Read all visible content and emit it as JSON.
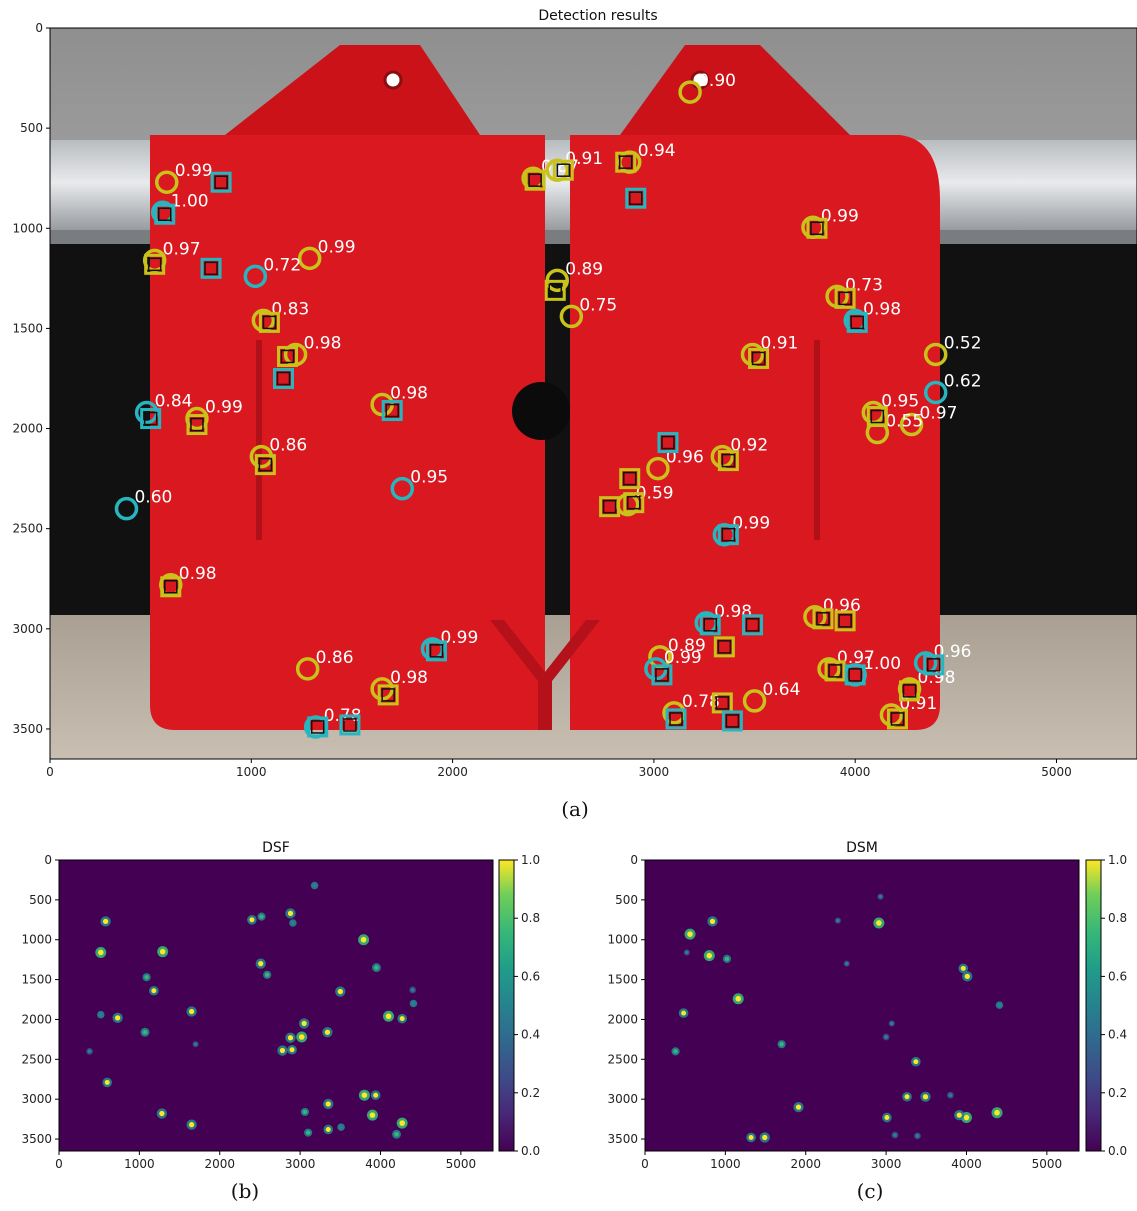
{
  "figure_labels": {
    "a": "(a)",
    "b": "(b)",
    "c": "(c)"
  },
  "colors": {
    "yellow_marker": "#c9c21a",
    "cyan_marker": "#27b6c0",
    "target_red": "#d91820",
    "colormap_low": "#440154",
    "colormap_high": "#fde725"
  },
  "chart_data": [
    {
      "type": "scatter",
      "title": "Detection results",
      "xlabel": "",
      "ylabel": "",
      "xlim": [
        0,
        5400
      ],
      "ylim": [
        3650,
        0
      ],
      "x_ticks": [
        0,
        1000,
        2000,
        3000,
        4000,
        5000
      ],
      "y_ticks": [
        0,
        500,
        1000,
        1500,
        2000,
        2500,
        3000,
        3500
      ],
      "grid": false,
      "series": [
        {
          "marker": "circle",
          "color": "yellow",
          "points": [
            {
              "x": 3180,
              "y": 320,
              "label": "0.90"
            },
            {
              "x": 580,
              "y": 770,
              "label": "0.99"
            },
            {
              "x": 520,
              "y": 1160,
              "label": "0.97"
            },
            {
              "x": 1290,
              "y": 1150,
              "label": "0.99"
            },
            {
              "x": 2590,
              "y": 1440,
              "label": "0.75"
            },
            {
              "x": 3790,
              "y": 995,
              "label": "0.99"
            },
            {
              "x": 3910,
              "y": 1340,
              "label": "0.73"
            },
            {
              "x": 3490,
              "y": 1630,
              "label": "0.91"
            },
            {
              "x": 4400,
              "y": 1630,
              "label": "0.52"
            },
            {
              "x": 4090,
              "y": 1920,
              "label": "0.95"
            },
            {
              "x": 4280,
              "y": 1980,
              "label": "0.97"
            },
            {
              "x": 730,
              "y": 1950,
              "label": "0.99"
            },
            {
              "x": 1650,
              "y": 1880,
              "label": "0.98"
            },
            {
              "x": 1050,
              "y": 2140,
              "label": "0.86"
            },
            {
              "x": 3340,
              "y": 2140,
              "label": "0.92"
            },
            {
              "x": 3020,
              "y": 2200,
              "label": "0.96"
            },
            {
              "x": 600,
              "y": 2780,
              "label": "0.98"
            },
            {
              "x": 1280,
              "y": 3200,
              "label": "0.86"
            },
            {
              "x": 1650,
              "y": 3300,
              "label": "0.98"
            },
            {
              "x": 3030,
              "y": 3140,
              "label": "0.89"
            },
            {
              "x": 3800,
              "y": 2940,
              "label": "0.96"
            },
            {
              "x": 3870,
              "y": 3200,
              "label": "0.97"
            },
            {
              "x": 3100,
              "y": 3420,
              "label": "0.78"
            },
            {
              "x": 3500,
              "y": 3360,
              "label": "0.64"
            },
            {
              "x": 4270,
              "y": 3300,
              "label": "0.98"
            },
            {
              "x": 4180,
              "y": 3430,
              "label": "0.91"
            },
            {
              "x": 2880,
              "y": 670,
              "label": "0.94"
            },
            {
              "x": 2400,
              "y": 750,
              "label": "0.87"
            },
            {
              "x": 2520,
              "y": 710,
              "label": "0.91"
            },
            {
              "x": 2520,
              "y": 1260,
              "label": "0.89"
            },
            {
              "x": 1220,
              "y": 1630,
              "label": "0.98"
            },
            {
              "x": 2870,
              "y": 2380,
              "label": "0.59"
            },
            {
              "x": 4110,
              "y": 2020,
              "label": "0.55"
            },
            {
              "x": 1060,
              "y": 1460,
              "label": "0.83"
            }
          ]
        },
        {
          "marker": "circle",
          "color": "cyan",
          "points": [
            {
              "x": 560,
              "y": 920,
              "label": "1.00"
            },
            {
              "x": 1020,
              "y": 1240,
              "label": "0.72"
            },
            {
              "x": 480,
              "y": 1920,
              "label": "0.84"
            },
            {
              "x": 380,
              "y": 2400,
              "label": "0.60"
            },
            {
              "x": 1750,
              "y": 2300,
              "label": "0.95"
            },
            {
              "x": 1900,
              "y": 3100,
              "label": "0.99"
            },
            {
              "x": 1320,
              "y": 3490,
              "label": "0.78"
            },
            {
              "x": 3010,
              "y": 3200,
              "label": "0.99"
            },
            {
              "x": 3260,
              "y": 2970,
              "label": "0.98"
            },
            {
              "x": 4000,
              "y": 3230,
              "label": "1.00"
            },
            {
              "x": 4350,
              "y": 3170,
              "label": "0.96"
            },
            {
              "x": 4400,
              "y": 1820,
              "label": "0.62"
            },
            {
              "x": 4000,
              "y": 1460,
              "label": "0.98"
            },
            {
              "x": 3350,
              "y": 2530,
              "label": "0.99"
            }
          ]
        },
        {
          "marker": "square",
          "color": "yellow",
          "points": [
            {
              "x": 2410,
              "y": 760
            },
            {
              "x": 2550,
              "y": 710
            },
            {
              "x": 2860,
              "y": 670
            },
            {
              "x": 2510,
              "y": 1310
            },
            {
              "x": 520,
              "y": 1180
            },
            {
              "x": 1090,
              "y": 1470
            },
            {
              "x": 1180,
              "y": 1640
            },
            {
              "x": 730,
              "y": 1980
            },
            {
              "x": 1070,
              "y": 2180
            },
            {
              "x": 3810,
              "y": 1000
            },
            {
              "x": 3950,
              "y": 1350
            },
            {
              "x": 3520,
              "y": 1650
            },
            {
              "x": 4110,
              "y": 1940
            },
            {
              "x": 3370,
              "y": 2160
            },
            {
              "x": 2880,
              "y": 2250
            },
            {
              "x": 2780,
              "y": 2390
            },
            {
              "x": 2900,
              "y": 2370
            },
            {
              "x": 600,
              "y": 2790
            },
            {
              "x": 1680,
              "y": 3330
            },
            {
              "x": 3350,
              "y": 3090
            },
            {
              "x": 3840,
              "y": 2950
            },
            {
              "x": 3950,
              "y": 2960
            },
            {
              "x": 3900,
              "y": 3210
            },
            {
              "x": 3340,
              "y": 3370
            },
            {
              "x": 4270,
              "y": 3310
            },
            {
              "x": 4210,
              "y": 3450
            }
          ]
        },
        {
          "marker": "square",
          "color": "cyan",
          "points": [
            {
              "x": 850,
              "y": 770
            },
            {
              "x": 570,
              "y": 930
            },
            {
              "x": 800,
              "y": 1200
            },
            {
              "x": 1160,
              "y": 1750
            },
            {
              "x": 500,
              "y": 1950
            },
            {
              "x": 1700,
              "y": 1910
            },
            {
              "x": 2910,
              "y": 850
            },
            {
              "x": 3070,
              "y": 2070
            },
            {
              "x": 3370,
              "y": 2530
            },
            {
              "x": 3490,
              "y": 2980
            },
            {
              "x": 3280,
              "y": 2980
            },
            {
              "x": 3040,
              "y": 3230
            },
            {
              "x": 1920,
              "y": 3110
            },
            {
              "x": 1490,
              "y": 3480
            },
            {
              "x": 1330,
              "y": 3490
            },
            {
              "x": 3110,
              "y": 3450
            },
            {
              "x": 3390,
              "y": 3460
            },
            {
              "x": 4010,
              "y": 1470
            },
            {
              "x": 4000,
              "y": 3230
            },
            {
              "x": 4390,
              "y": 3180
            }
          ]
        }
      ]
    },
    {
      "type": "heatmap",
      "title": "DSF",
      "xlim": [
        0,
        5400
      ],
      "ylim": [
        3650,
        0
      ],
      "x_ticks": [
        0,
        1000,
        2000,
        3000,
        4000,
        5000
      ],
      "y_ticks": [
        0,
        500,
        1000,
        1500,
        2000,
        2500,
        3000,
        3500
      ],
      "colorbar_ticks": [
        0.0,
        0.2,
        0.4,
        0.6,
        0.8,
        1.0
      ],
      "value_range": [
        0.0,
        1.0
      ],
      "hotspots": [
        {
          "x": 3180,
          "y": 320,
          "v": 0.5
        },
        {
          "x": 580,
          "y": 770,
          "v": 0.9
        },
        {
          "x": 520,
          "y": 1160,
          "v": 1.0
        },
        {
          "x": 1290,
          "y": 1150,
          "v": 1.0
        },
        {
          "x": 2400,
          "y": 750,
          "v": 0.8
        },
        {
          "x": 2520,
          "y": 710,
          "v": 0.6
        },
        {
          "x": 2880,
          "y": 670,
          "v": 0.9
        },
        {
          "x": 2910,
          "y": 790,
          "v": 0.5
        },
        {
          "x": 3790,
          "y": 1000,
          "v": 1.0
        },
        {
          "x": 2510,
          "y": 1300,
          "v": 0.9
        },
        {
          "x": 2590,
          "y": 1440,
          "v": 0.6
        },
        {
          "x": 1090,
          "y": 1470,
          "v": 0.6
        },
        {
          "x": 1180,
          "y": 1640,
          "v": 0.8
        },
        {
          "x": 3950,
          "y": 1350,
          "v": 0.7
        },
        {
          "x": 3500,
          "y": 1650,
          "v": 0.9
        },
        {
          "x": 4400,
          "y": 1630,
          "v": 0.4
        },
        {
          "x": 4410,
          "y": 1800,
          "v": 0.5
        },
        {
          "x": 730,
          "y": 1980,
          "v": 0.9
        },
        {
          "x": 520,
          "y": 1940,
          "v": 0.5
        },
        {
          "x": 1650,
          "y": 1900,
          "v": 0.9
        },
        {
          "x": 1070,
          "y": 2160,
          "v": 0.7
        },
        {
          "x": 4100,
          "y": 1960,
          "v": 1.0
        },
        {
          "x": 4270,
          "y": 1990,
          "v": 0.8
        },
        {
          "x": 3340,
          "y": 2160,
          "v": 0.9
        },
        {
          "x": 3050,
          "y": 2050,
          "v": 0.9
        },
        {
          "x": 3020,
          "y": 2220,
          "v": 1.0
        },
        {
          "x": 2880,
          "y": 2230,
          "v": 0.9
        },
        {
          "x": 2900,
          "y": 2380,
          "v": 0.8
        },
        {
          "x": 2780,
          "y": 2390,
          "v": 0.9
        },
        {
          "x": 380,
          "y": 2400,
          "v": 0.4
        },
        {
          "x": 1700,
          "y": 2310,
          "v": 0.3
        },
        {
          "x": 600,
          "y": 2790,
          "v": 0.8
        },
        {
          "x": 1280,
          "y": 3180,
          "v": 0.9
        },
        {
          "x": 1650,
          "y": 3320,
          "v": 0.9
        },
        {
          "x": 3350,
          "y": 3060,
          "v": 0.9
        },
        {
          "x": 3800,
          "y": 2950,
          "v": 1.0
        },
        {
          "x": 3940,
          "y": 2950,
          "v": 0.8
        },
        {
          "x": 3900,
          "y": 3200,
          "v": 1.0
        },
        {
          "x": 3350,
          "y": 3380,
          "v": 0.8
        },
        {
          "x": 4270,
          "y": 3300,
          "v": 1.0
        },
        {
          "x": 4200,
          "y": 3440,
          "v": 0.7
        },
        {
          "x": 3100,
          "y": 3420,
          "v": 0.6
        },
        {
          "x": 3510,
          "y": 3350,
          "v": 0.5
        },
        {
          "x": 3060,
          "y": 3160,
          "v": 0.6
        }
      ]
    },
    {
      "type": "heatmap",
      "title": "DSM",
      "xlim": [
        0,
        5400
      ],
      "ylim": [
        3650,
        0
      ],
      "x_ticks": [
        0,
        1000,
        2000,
        3000,
        4000,
        5000
      ],
      "y_ticks": [
        0,
        500,
        1000,
        1500,
        2000,
        2500,
        3000,
        3500
      ],
      "colorbar_ticks": [
        0.0,
        0.2,
        0.4,
        0.6,
        0.8,
        1.0
      ],
      "value_range": [
        0.0,
        1.0
      ],
      "hotspots": [
        {
          "x": 2910,
          "y": 790,
          "v": 1.0
        },
        {
          "x": 2930,
          "y": 460,
          "v": 0.3
        },
        {
          "x": 560,
          "y": 930,
          "v": 1.0
        },
        {
          "x": 840,
          "y": 770,
          "v": 0.9
        },
        {
          "x": 800,
          "y": 1200,
          "v": 1.0
        },
        {
          "x": 1020,
          "y": 1240,
          "v": 0.6
        },
        {
          "x": 1160,
          "y": 1740,
          "v": 1.0
        },
        {
          "x": 480,
          "y": 1920,
          "v": 0.8
        },
        {
          "x": 380,
          "y": 2400,
          "v": 0.6
        },
        {
          "x": 1700,
          "y": 2310,
          "v": 0.6
        },
        {
          "x": 1910,
          "y": 3100,
          "v": 0.9
        },
        {
          "x": 1320,
          "y": 3480,
          "v": 0.8
        },
        {
          "x": 1490,
          "y": 3480,
          "v": 0.9
        },
        {
          "x": 3010,
          "y": 3230,
          "v": 0.8
        },
        {
          "x": 3260,
          "y": 2970,
          "v": 0.8
        },
        {
          "x": 3490,
          "y": 2970,
          "v": 0.9
        },
        {
          "x": 3370,
          "y": 2530,
          "v": 0.8
        },
        {
          "x": 4000,
          "y": 3230,
          "v": 1.0
        },
        {
          "x": 4380,
          "y": 3170,
          "v": 1.0
        },
        {
          "x": 3960,
          "y": 1360,
          "v": 0.8
        },
        {
          "x": 4010,
          "y": 1460,
          "v": 0.9
        },
        {
          "x": 4410,
          "y": 1820,
          "v": 0.5
        },
        {
          "x": 3070,
          "y": 2050,
          "v": 0.3
        },
        {
          "x": 3000,
          "y": 2220,
          "v": 0.4
        },
        {
          "x": 3910,
          "y": 3200,
          "v": 0.9
        },
        {
          "x": 3110,
          "y": 3450,
          "v": 0.4
        },
        {
          "x": 3390,
          "y": 3460,
          "v": 0.4
        },
        {
          "x": 2400,
          "y": 760,
          "v": 0.3
        },
        {
          "x": 3800,
          "y": 2950,
          "v": 0.4
        },
        {
          "x": 2510,
          "y": 1300,
          "v": 0.3
        },
        {
          "x": 520,
          "y": 1160,
          "v": 0.3
        }
      ]
    }
  ]
}
